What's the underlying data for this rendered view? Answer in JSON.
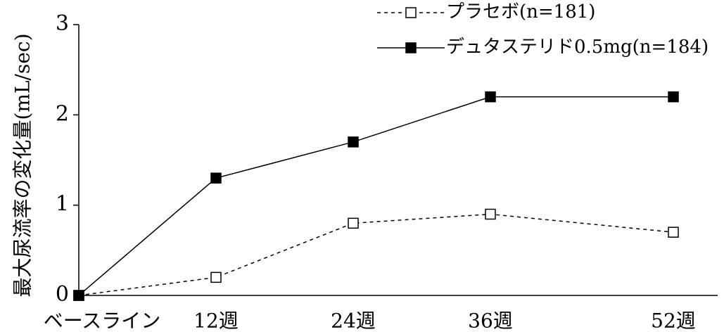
{
  "chart_data": {
    "type": "line",
    "ylabel": "最大尿流率の変化量(mL/sec)",
    "xlabel": "",
    "categories": [
      "ベースライン",
      "12週",
      "24週",
      "36週",
      "52週"
    ],
    "x": [
      0,
      12,
      24,
      36,
      52
    ],
    "ylim": [
      0,
      3
    ],
    "yticks": [
      0,
      1,
      2,
      3
    ],
    "grid": false,
    "legend_position": "top-right",
    "series": [
      {
        "name": "プラセボ(n=181)",
        "values": [
          0,
          0.2,
          0.8,
          0.9,
          0.7
        ],
        "line_style": "dashed",
        "marker": "open-square",
        "color": "#000000"
      },
      {
        "name": "デュタステリド0.5mg(n=184)",
        "values": [
          0,
          1.3,
          1.7,
          2.2,
          2.2
        ],
        "line_style": "solid",
        "marker": "filled-square",
        "color": "#000000"
      }
    ]
  }
}
